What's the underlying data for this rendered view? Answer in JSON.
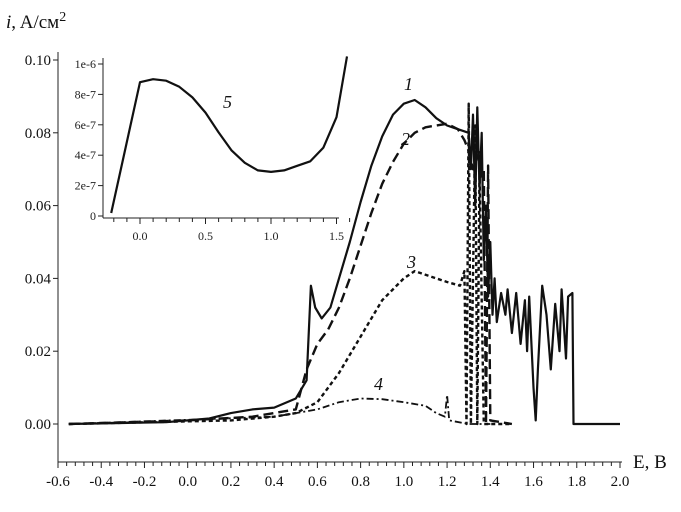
{
  "chart_data": [
    {
      "type": "line",
      "xlabel": "E, B",
      "ylabel": "i, A/см2",
      "xlim": [
        -0.6,
        2.0
      ],
      "ylim": [
        0.0,
        0.1
      ],
      "x_ticks": [
        "-0.6",
        "-0.4",
        "-0.2",
        "0.0",
        "0.2",
        "0.4",
        "0.6",
        "0.8",
        "1.0",
        "1.2",
        "1.4",
        "1.6",
        "1.8",
        "2.0"
      ],
      "y_ticks": [
        "0.00",
        "0.02",
        "0.04",
        "0.06",
        "0.08",
        "0.10"
      ],
      "grid": false,
      "series": [
        {
          "name": "1",
          "style": "solid",
          "points": [
            [
              -0.55,
              0
            ],
            [
              -0.1,
              0.0005
            ],
            [
              0,
              0.001
            ],
            [
              0.1,
              0.0015
            ],
            [
              0.2,
              0.003
            ],
            [
              0.3,
              0.004
            ],
            [
              0.4,
              0.0045
            ],
            [
              0.5,
              0.007
            ],
            [
              0.55,
              0.012
            ],
            [
              0.57,
              0.038
            ],
            [
              0.59,
              0.032
            ],
            [
              0.62,
              0.029
            ],
            [
              0.66,
              0.032
            ],
            [
              0.7,
              0.04
            ],
            [
              0.75,
              0.05
            ],
            [
              0.8,
              0.061
            ],
            [
              0.85,
              0.071
            ],
            [
              0.9,
              0.079
            ],
            [
              0.95,
              0.085
            ],
            [
              1.0,
              0.088
            ],
            [
              1.05,
              0.089
            ],
            [
              1.1,
              0.087
            ],
            [
              1.15,
              0.084
            ],
            [
              1.2,
              0.082
            ],
            [
              1.25,
              0.081
            ],
            [
              1.3,
              0.08
            ],
            [
              1.31,
              0.07
            ],
            [
              1.32,
              0.085
            ],
            [
              1.33,
              0.06
            ],
            [
              1.34,
              0.087
            ],
            [
              1.35,
              0.065
            ],
            [
              1.36,
              0.08
            ],
            [
              1.37,
              0.045
            ],
            [
              1.38,
              0.06
            ],
            [
              1.39,
              0.035
            ],
            [
              1.4,
              0.05
            ],
            [
              1.41,
              0.03
            ],
            [
              1.42,
              0.04
            ],
            [
              1.43,
              0.028
            ],
            [
              1.45,
              0.036
            ],
            [
              1.47,
              0.03
            ],
            [
              1.48,
              0.037
            ],
            [
              1.5,
              0.025
            ],
            [
              1.52,
              0.036
            ],
            [
              1.54,
              0.022
            ],
            [
              1.56,
              0.034
            ],
            [
              1.57,
              0.02
            ],
            [
              1.58,
              0.035
            ],
            [
              1.6,
              0.01
            ],
            [
              1.61,
              0.001
            ],
            [
              1.62,
              0.015
            ],
            [
              1.64,
              0.038
            ],
            [
              1.66,
              0.03
            ],
            [
              1.68,
              0.015
            ],
            [
              1.7,
              0.033
            ],
            [
              1.72,
              0.02
            ],
            [
              1.73,
              0.037
            ],
            [
              1.75,
              0.018
            ],
            [
              1.76,
              0.035
            ],
            [
              1.78,
              0.036
            ],
            [
              1.785,
              0
            ],
            [
              2.0,
              0
            ]
          ]
        },
        {
          "name": "2",
          "style": "dashed",
          "points": [
            [
              -0.55,
              0
            ],
            [
              0,
              0.001
            ],
            [
              0.3,
              0.002
            ],
            [
              0.5,
              0.004
            ],
            [
              0.55,
              0.015
            ],
            [
              0.6,
              0.022
            ],
            [
              0.65,
              0.026
            ],
            [
              0.7,
              0.032
            ],
            [
              0.75,
              0.04
            ],
            [
              0.8,
              0.049
            ],
            [
              0.85,
              0.058
            ],
            [
              0.9,
              0.066
            ],
            [
              0.95,
              0.072
            ],
            [
              1.0,
              0.077
            ],
            [
              1.05,
              0.08
            ],
            [
              1.1,
              0.0815
            ],
            [
              1.15,
              0.082
            ],
            [
              1.2,
              0.0825
            ],
            [
              1.25,
              0.081
            ],
            [
              1.28,
              0.078
            ],
            [
              1.3,
              0.075
            ],
            [
              1.32,
              0.07
            ],
            [
              1.35,
              0.075
            ],
            [
              1.36,
              0.068
            ],
            [
              1.37,
              0.07
            ],
            [
              1.38,
              0
            ],
            [
              1.39,
              0.071
            ],
            [
              1.4,
              0.001
            ],
            [
              1.5,
              0
            ]
          ]
        },
        {
          "name": "3",
          "style": "short-dashed",
          "points": [
            [
              -0.55,
              0
            ],
            [
              0.2,
              0.001
            ],
            [
              0.4,
              0.002
            ],
            [
              0.5,
              0.003
            ],
            [
              0.6,
              0.006
            ],
            [
              0.7,
              0.014
            ],
            [
              0.8,
              0.024
            ],
            [
              0.9,
              0.034
            ],
            [
              1.0,
              0.04
            ],
            [
              1.05,
              0.042
            ],
            [
              1.1,
              0.041
            ],
            [
              1.2,
              0.039
            ],
            [
              1.26,
              0.038
            ],
            [
              1.28,
              0.042
            ],
            [
              1.29,
              0
            ],
            [
              1.3,
              0.088
            ],
            [
              1.31,
              0
            ],
            [
              1.33,
              0.082
            ],
            [
              1.34,
              0
            ],
            [
              1.35,
              0.07
            ],
            [
              1.37,
              0
            ],
            [
              1.5,
              0
            ]
          ]
        },
        {
          "name": "4",
          "style": "dash-dot",
          "points": [
            [
              -0.55,
              0
            ],
            [
              0.4,
              0.002
            ],
            [
              0.5,
              0.003
            ],
            [
              0.6,
              0.004
            ],
            [
              0.7,
              0.006
            ],
            [
              0.8,
              0.007
            ],
            [
              0.9,
              0.0068
            ],
            [
              1.0,
              0.006
            ],
            [
              1.1,
              0.005
            ],
            [
              1.15,
              0.003
            ],
            [
              1.19,
              0.002
            ],
            [
              1.2,
              0.008
            ],
            [
              1.21,
              0.001
            ],
            [
              1.3,
              0
            ],
            [
              1.4,
              0
            ]
          ]
        }
      ]
    },
    {
      "type": "line",
      "xlim": [
        -0.25,
        1.6
      ],
      "ylim": [
        0,
        1e-06
      ],
      "x_ticks": [
        "0.0",
        "0.5",
        "1.0",
        "1.5"
      ],
      "y_ticks": [
        "0",
        "2e-7",
        "4e-7",
        "6e-7",
        "8e-7",
        "1e-6"
      ],
      "grid": false,
      "series": [
        {
          "name": "5",
          "style": "solid",
          "points": [
            [
              -0.22,
              2e-08
            ],
            [
              0.0,
              8.8e-07
            ],
            [
              0.1,
              9e-07
            ],
            [
              0.2,
              8.9e-07
            ],
            [
              0.3,
              8.5e-07
            ],
            [
              0.4,
              7.8e-07
            ],
            [
              0.5,
              6.8e-07
            ],
            [
              0.6,
              5.5e-07
            ],
            [
              0.7,
              4.3e-07
            ],
            [
              0.8,
              3.5e-07
            ],
            [
              0.9,
              3e-07
            ],
            [
              1.0,
              2.9e-07
            ],
            [
              1.1,
              3e-07
            ],
            [
              1.2,
              3.3e-07
            ],
            [
              1.3,
              3.6e-07
            ],
            [
              1.4,
              4.5e-07
            ],
            [
              1.5,
              6.5e-07
            ],
            [
              1.58,
              1.05e-06
            ]
          ]
        }
      ]
    }
  ]
}
